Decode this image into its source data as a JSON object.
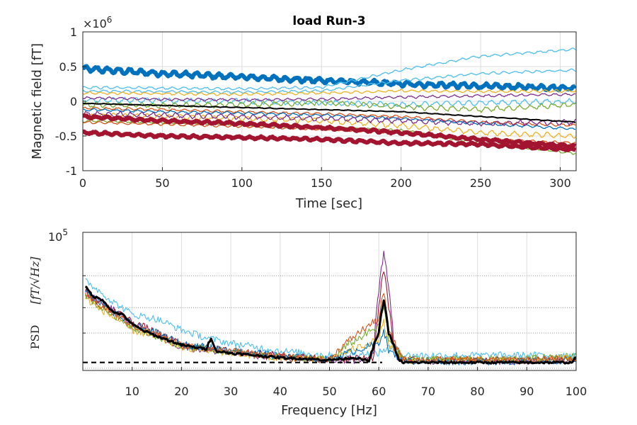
{
  "chart_data": [
    {
      "type": "line",
      "title": "load Run-3",
      "xlabel": "Time [sec]",
      "ylabel": "Magnetic field [fT]",
      "y_exponent_label": "×10",
      "y_exponent_power": "6",
      "xlim": [
        0,
        310
      ],
      "ylim": [
        -1,
        1
      ],
      "y_multiplier": 1000000,
      "x_ticks": [
        "0",
        "50",
        "100",
        "150",
        "200",
        "250",
        "300"
      ],
      "y_ticks": [
        "-1",
        "-0.5",
        "0",
        "0.5",
        "1"
      ],
      "grid": true,
      "series": [
        {
          "color": "#0072BD",
          "x": [
            0,
            50,
            100,
            150,
            200,
            250,
            310
          ],
          "values": [
            0.47,
            0.4,
            0.35,
            0.3,
            0.25,
            0.22,
            0.19
          ]
        },
        {
          "color": "#4DBEEE",
          "x": [
            0,
            50,
            100,
            150,
            200,
            250,
            310
          ],
          "values": [
            0.2,
            0.19,
            0.18,
            0.2,
            0.45,
            0.65,
            0.75
          ]
        },
        {
          "color": "#4DBEEE",
          "x": [
            0,
            50,
            100,
            150,
            200,
            250,
            310
          ],
          "values": [
            0.15,
            0.14,
            0.13,
            0.15,
            0.3,
            0.4,
            0.45
          ]
        },
        {
          "color": "#4DBEEE",
          "x": [
            0,
            50,
            100,
            150,
            200,
            250,
            310
          ],
          "values": [
            0.02,
            0.01,
            0.0,
            -0.02,
            -0.05,
            -0.02,
            0.0
          ]
        },
        {
          "color": "#EDB120",
          "x": [
            0,
            50,
            100,
            150,
            200,
            250,
            310
          ],
          "values": [
            0.12,
            0.11,
            0.1,
            0.12,
            0.15,
            0.14,
            0.15
          ]
        },
        {
          "color": "#7E2F8E",
          "x": [
            0,
            50,
            100,
            150,
            200,
            250,
            310
          ],
          "values": [
            0.05,
            0.03,
            0.02,
            0.03,
            0.06,
            0.08,
            0.1
          ]
        },
        {
          "color": "#77AC30",
          "x": [
            0,
            50,
            100,
            150,
            200,
            250,
            310
          ],
          "values": [
            -0.05,
            -0.06,
            -0.05,
            -0.02,
            -0.08,
            -0.12,
            -0.05
          ]
        },
        {
          "color": "#D95319",
          "x": [
            0,
            50,
            100,
            150,
            200,
            250,
            310
          ],
          "values": [
            -0.1,
            -0.12,
            -0.15,
            -0.18,
            -0.22,
            -0.3,
            -0.35
          ]
        },
        {
          "color": "#0072BD",
          "x": [
            0,
            50,
            100,
            150,
            200,
            250,
            310
          ],
          "values": [
            -0.12,
            -0.15,
            -0.17,
            -0.2,
            -0.25,
            -0.32,
            -0.4
          ]
        },
        {
          "color": "#EDB120",
          "x": [
            0,
            50,
            100,
            150,
            200,
            250,
            310
          ],
          "values": [
            -0.2,
            -0.22,
            -0.25,
            -0.28,
            -0.35,
            -0.45,
            -0.5
          ]
        },
        {
          "color": "#77AC30",
          "x": [
            0,
            50,
            100,
            150,
            200,
            250,
            310
          ],
          "values": [
            -0.28,
            -0.3,
            -0.33,
            -0.38,
            -0.42,
            -0.6,
            -0.75
          ]
        },
        {
          "color": "#D95319",
          "x": [
            0,
            50,
            100,
            150,
            200,
            250,
            310
          ],
          "values": [
            -0.3,
            -0.33,
            -0.36,
            -0.4,
            -0.45,
            -0.55,
            -0.6
          ]
        },
        {
          "color": "#7E2F8E",
          "x": [
            0,
            50,
            100,
            150,
            200,
            250,
            310
          ],
          "values": [
            -0.18,
            -0.2,
            -0.22,
            -0.25,
            -0.28,
            -0.32,
            -0.3
          ]
        },
        {
          "color": "#A2142F",
          "x": [
            0,
            50,
            100,
            150,
            200,
            250,
            310
          ],
          "values": [
            -0.22,
            -0.28,
            -0.32,
            -0.38,
            -0.45,
            -0.55,
            -0.65
          ]
        },
        {
          "color": "#A2142F",
          "x": [
            0,
            50,
            100,
            150,
            200,
            250,
            310
          ],
          "values": [
            -0.45,
            -0.5,
            -0.52,
            -0.55,
            -0.6,
            -0.62,
            -0.7
          ]
        },
        {
          "color": "#000000",
          "x": [
            0,
            50,
            100,
            150,
            200,
            250,
            310
          ],
          "values": [
            -0.03,
            -0.06,
            -0.09,
            -0.12,
            -0.15,
            -0.22,
            -0.3
          ]
        }
      ]
    },
    {
      "type": "line",
      "xlabel": "Frequency [Hz]",
      "ylabel": "PSD",
      "ylabel_units": "[fT/√Hz]",
      "y_scale": "log",
      "y_ticks": [
        "10",
        "5"
      ],
      "xlim": [
        0,
        100
      ],
      "ylim": [
        11000,
        100000
      ],
      "x_ticks": [
        "10",
        "20",
        "30",
        "40",
        "50",
        "60",
        "70",
        "80",
        "90",
        "100"
      ],
      "grid": true,
      "reference_level": 12500,
      "series": [
        {
          "color": "#000000",
          "x": [
            0.5,
            2,
            4,
            6,
            8,
            10,
            12,
            15,
            18,
            20,
            25,
            26,
            27,
            30,
            40,
            50,
            55,
            58,
            60,
            61,
            62,
            64,
            65,
            70,
            80,
            90,
            99,
            100
          ],
          "values": [
            42000,
            36000,
            34000,
            28000,
            27000,
            23000,
            21000,
            19000,
            17500,
            16500,
            15500,
            18500,
            15000,
            14500,
            13500,
            13000,
            13500,
            12800,
            20000,
            34000,
            20000,
            13000,
            12500,
            12500,
            12500,
            12500,
            12500,
            13500
          ]
        },
        {
          "color": "#7E2F8E",
          "x": [
            0.5,
            2,
            4,
            6,
            8,
            10,
            15,
            20,
            30,
            40,
            50,
            58,
            59,
            60,
            61,
            62,
            63,
            65,
            70,
            80,
            90,
            100
          ],
          "values": [
            40000,
            35000,
            33000,
            29000,
            27000,
            22000,
            19000,
            16000,
            14500,
            13500,
            13000,
            12800,
            15000,
            40000,
            70000,
            40000,
            18000,
            12800,
            12800,
            12800,
            12800,
            13000
          ]
        },
        {
          "color": "#4DBEEE",
          "x": [
            0.5,
            3,
            6,
            10,
            15,
            20,
            25,
            30,
            40,
            50,
            60,
            62,
            65,
            70,
            80,
            90,
            100
          ],
          "values": [
            46000,
            40000,
            33000,
            27000,
            25000,
            21000,
            18500,
            17000,
            15000,
            14000,
            14500,
            16000,
            14000,
            14000,
            14000,
            14000,
            14000
          ]
        },
        {
          "color": "#A2142F",
          "x": [
            0.5,
            3,
            6,
            10,
            15,
            20,
            30,
            40,
            50,
            59,
            60,
            61,
            62,
            63,
            65,
            70,
            80,
            90,
            100
          ],
          "values": [
            38000,
            33000,
            29000,
            24000,
            20000,
            16500,
            15000,
            14000,
            13200,
            13500,
            30000,
            55000,
            30000,
            15000,
            13000,
            13000,
            13000,
            13000,
            13200
          ]
        },
        {
          "color": "#EDB120",
          "x": [
            0.5,
            3,
            6,
            10,
            15,
            20,
            30,
            40,
            50,
            60,
            61,
            62,
            65,
            70,
            80,
            90,
            100
          ],
          "values": [
            35000,
            30000,
            26000,
            21000,
            18500,
            16000,
            14500,
            13500,
            13000,
            18000,
            24000,
            16000,
            13000,
            12900,
            12900,
            12900,
            13500
          ]
        },
        {
          "color": "#77AC30",
          "x": [
            0.5,
            3,
            6,
            10,
            15,
            20,
            30,
            40,
            50,
            60,
            61,
            62,
            65,
            70,
            80,
            90,
            100
          ],
          "values": [
            37000,
            31000,
            27000,
            22000,
            19000,
            16200,
            14800,
            13600,
            13100,
            22000,
            30000,
            18000,
            13200,
            13200,
            13200,
            13200,
            14000
          ]
        },
        {
          "color": "#0072BD",
          "x": [
            0.5,
            3,
            6,
            10,
            15,
            20,
            30,
            40,
            50,
            60,
            61,
            62,
            65,
            70,
            80,
            90,
            100
          ],
          "values": [
            39000,
            34000,
            28000,
            23000,
            20000,
            16800,
            15200,
            13800,
            13100,
            17000,
            21000,
            15000,
            12800,
            12700,
            12700,
            12700,
            13000
          ]
        },
        {
          "color": "#D95319",
          "x": [
            0.5,
            3,
            6,
            10,
            15,
            20,
            30,
            40,
            50,
            60,
            61,
            62,
            65,
            70,
            80,
            90,
            100
          ],
          "values": [
            36000,
            32000,
            27500,
            22500,
            19500,
            16400,
            15000,
            13700,
            13000,
            25000,
            38000,
            20000,
            13000,
            13000,
            13000,
            13000,
            13300
          ]
        }
      ]
    }
  ]
}
